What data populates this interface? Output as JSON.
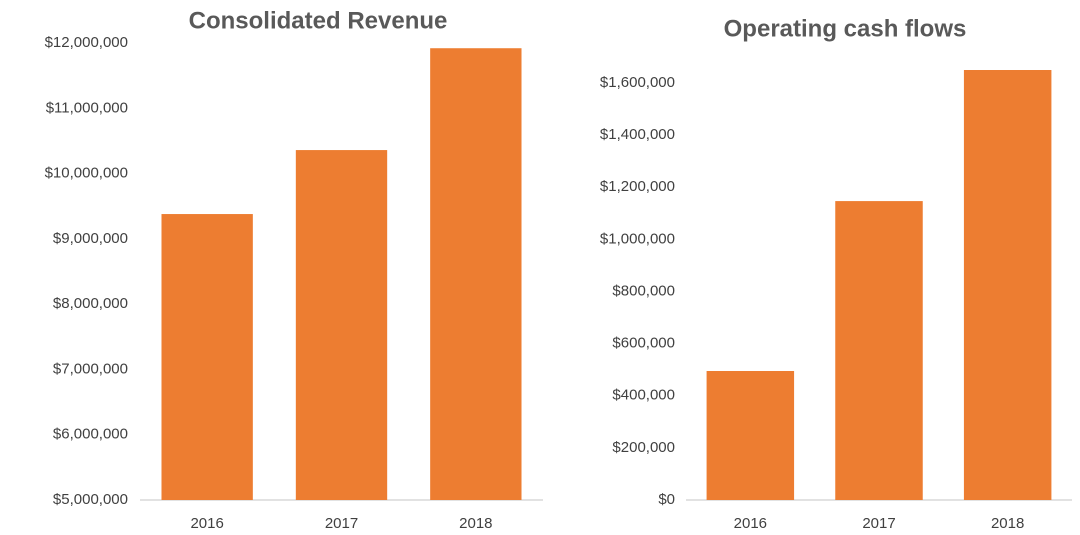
{
  "chart_data": [
    {
      "type": "bar",
      "title": "Consolidated Revenue",
      "categories": [
        "2016",
        "2017",
        "2018"
      ],
      "values": [
        9380000,
        10360000,
        11920000
      ],
      "color": "#ed7d31",
      "ylim": [
        5000000,
        12000000
      ],
      "yticks": [
        {
          "value": 5000000,
          "label": "$5,000,000"
        },
        {
          "value": 6000000,
          "label": "$6,000,000"
        },
        {
          "value": 7000000,
          "label": "$7,000,000"
        },
        {
          "value": 8000000,
          "label": "$8,000,000"
        },
        {
          "value": 9000000,
          "label": "$9,000,000"
        },
        {
          "value": 10000000,
          "label": "$10,000,000"
        },
        {
          "value": 11000000,
          "label": "$11,000,000"
        },
        {
          "value": 12000000,
          "label": "$12,000,000"
        }
      ]
    },
    {
      "type": "bar",
      "title": "Operating cash flows",
      "categories": [
        "2016",
        "2017",
        "2018"
      ],
      "values": [
        495000,
        1147000,
        1650000
      ],
      "color": "#ed7d31",
      "ylim": [
        0,
        1650000
      ],
      "yticks": [
        {
          "value": 0,
          "label": "$0"
        },
        {
          "value": 200000,
          "label": "$200,000"
        },
        {
          "value": 400000,
          "label": "$400,000"
        },
        {
          "value": 600000,
          "label": "$600,000"
        },
        {
          "value": 800000,
          "label": "$800,000"
        },
        {
          "value": 1000000,
          "label": "$1,000,000"
        },
        {
          "value": 1200000,
          "label": "$1,200,000"
        },
        {
          "value": 1400000,
          "label": "$1,400,000"
        },
        {
          "value": 1600000,
          "label": "$1,600,000"
        }
      ]
    }
  ]
}
